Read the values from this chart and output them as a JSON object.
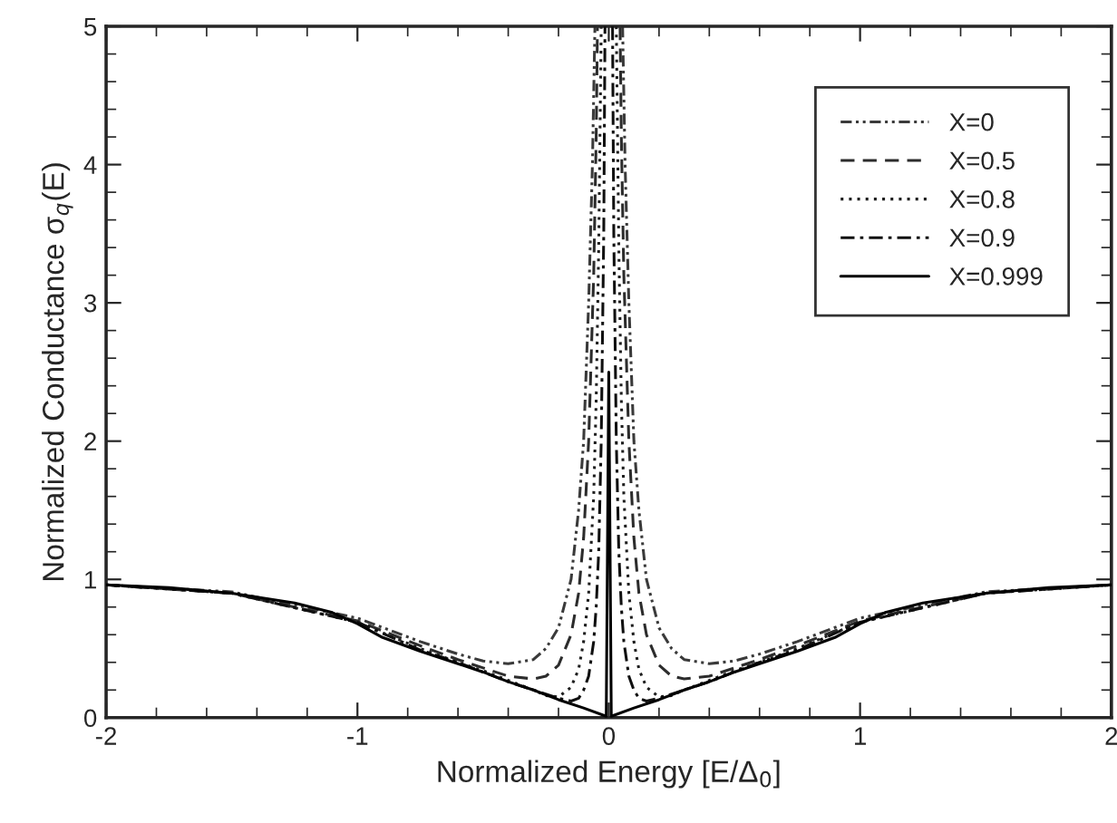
{
  "chart_data": {
    "type": "line",
    "xlabel": "Normalized Energy [E/Δ$_{0}$]",
    "ylabel": "Normalized Conductance σ$_{q}$(E)",
    "xlim": [
      -2,
      2
    ],
    "ylim": [
      0,
      5
    ],
    "xticks": [
      -2,
      -1,
      0,
      1,
      2
    ],
    "yticks": [
      0,
      1,
      2,
      3,
      4,
      5
    ],
    "grid": false,
    "legend": "top right",
    "marker": "none",
    "series": [
      {
        "name": "X=0",
        "color": "#3a3a3a",
        "line_style": "dashdotdot",
        "x": [
          -2,
          -1.5,
          -1,
          -0.75,
          -0.6,
          -0.5,
          -0.4,
          -0.3,
          -0.25,
          -0.2,
          -0.15,
          -0.12,
          -0.1,
          -0.08,
          -0.065,
          -0.055,
          0,
          0.055,
          0.065,
          0.08,
          0.1,
          0.12,
          0.15,
          0.2,
          0.25,
          0.3,
          0.4,
          0.5,
          0.6,
          0.75,
          1,
          1.5,
          2
        ],
        "values": [
          0.96,
          0.91,
          0.72,
          0.55,
          0.46,
          0.41,
          0.39,
          0.42,
          0.5,
          0.65,
          1.0,
          1.5,
          2.0,
          3.0,
          4.0,
          5.0,
          null,
          5.0,
          4.0,
          3.0,
          2.0,
          1.5,
          1.0,
          0.65,
          0.5,
          0.42,
          0.39,
          0.41,
          0.46,
          0.55,
          0.72,
          0.91,
          0.96
        ]
      },
      {
        "name": "X=0.5",
        "color": "#2c2c2c",
        "line_style": "dashed",
        "x": [
          -2,
          -1.5,
          -1,
          -0.75,
          -0.6,
          -0.5,
          -0.4,
          -0.3,
          -0.25,
          -0.2,
          -0.15,
          -0.12,
          -0.1,
          -0.08,
          -0.06,
          -0.05,
          -0.045,
          0,
          0.045,
          0.05,
          0.06,
          0.08,
          0.1,
          0.12,
          0.15,
          0.2,
          0.25,
          0.3,
          0.4,
          0.5,
          0.6,
          0.75,
          1,
          1.5,
          2
        ],
        "values": [
          0.96,
          0.9,
          0.7,
          0.52,
          0.42,
          0.36,
          0.3,
          0.28,
          0.3,
          0.38,
          0.6,
          0.9,
          1.3,
          2.0,
          3.2,
          4.2,
          5.0,
          null,
          5.0,
          4.2,
          3.2,
          2.0,
          1.3,
          0.9,
          0.6,
          0.38,
          0.3,
          0.28,
          0.3,
          0.36,
          0.42,
          0.52,
          0.7,
          0.9,
          0.96
        ]
      },
      {
        "name": "X=0.8",
        "color": "#1e1e1e",
        "line_style": "dotted",
        "x": [
          -2,
          -1.5,
          -1,
          -0.75,
          -0.6,
          -0.5,
          -0.4,
          -0.3,
          -0.25,
          -0.2,
          -0.15,
          -0.12,
          -0.1,
          -0.08,
          -0.06,
          -0.05,
          -0.04,
          -0.035,
          -0.03,
          0,
          0.03,
          0.035,
          0.04,
          0.05,
          0.06,
          0.08,
          0.1,
          0.12,
          0.15,
          0.2,
          0.25,
          0.3,
          0.4,
          0.5,
          0.6,
          0.75,
          1,
          1.5,
          2
        ],
        "values": [
          0.96,
          0.9,
          0.69,
          0.5,
          0.4,
          0.34,
          0.27,
          0.2,
          0.16,
          0.15,
          0.22,
          0.35,
          0.55,
          0.9,
          1.6,
          2.3,
          3.4,
          4.2,
          5.0,
          null,
          5.0,
          4.2,
          3.4,
          2.3,
          1.6,
          0.9,
          0.55,
          0.35,
          0.22,
          0.15,
          0.16,
          0.2,
          0.27,
          0.34,
          0.4,
          0.5,
          0.69,
          0.9,
          0.96
        ]
      },
      {
        "name": "X=0.9",
        "color": "#101010",
        "line_style": "dashdot",
        "x": [
          -2,
          -1.5,
          -1,
          -0.75,
          -0.6,
          -0.5,
          -0.4,
          -0.3,
          -0.2,
          -0.15,
          -0.12,
          -0.1,
          -0.08,
          -0.06,
          -0.05,
          -0.04,
          -0.03,
          -0.02,
          -0.015,
          0,
          0.015,
          0.02,
          0.03,
          0.04,
          0.05,
          0.06,
          0.08,
          0.1,
          0.12,
          0.15,
          0.2,
          0.3,
          0.4,
          0.5,
          0.6,
          0.75,
          1,
          1.5,
          2
        ],
        "values": [
          0.96,
          0.9,
          0.69,
          0.49,
          0.4,
          0.33,
          0.26,
          0.2,
          0.14,
          0.12,
          0.14,
          0.2,
          0.3,
          0.55,
          0.8,
          1.2,
          2.0,
          3.5,
          5.0,
          null,
          5.0,
          3.5,
          2.0,
          1.2,
          0.8,
          0.55,
          0.3,
          0.2,
          0.14,
          0.12,
          0.14,
          0.2,
          0.26,
          0.33,
          0.4,
          0.49,
          0.69,
          0.9,
          0.96
        ]
      },
      {
        "name": "X=0.999",
        "color": "#000000",
        "line_style": "solid",
        "x": [
          -2,
          -1.75,
          -1.5,
          -1.25,
          -1.1,
          -1,
          -0.9,
          -0.75,
          -0.6,
          -0.5,
          -0.4,
          -0.3,
          -0.2,
          -0.1,
          -0.01,
          0,
          0.01,
          0.1,
          0.2,
          0.3,
          0.4,
          0.5,
          0.6,
          0.75,
          0.9,
          1,
          1.1,
          1.25,
          1.5,
          1.75,
          2
        ],
        "values": [
          0.96,
          0.94,
          0.9,
          0.83,
          0.76,
          0.68,
          0.58,
          0.48,
          0.39,
          0.33,
          0.26,
          0.2,
          0.13,
          0.07,
          0.01,
          2.5,
          0.01,
          0.07,
          0.13,
          0.2,
          0.26,
          0.33,
          0.39,
          0.48,
          0.58,
          0.68,
          0.76,
          0.83,
          0.9,
          0.94,
          0.96
        ]
      }
    ]
  }
}
